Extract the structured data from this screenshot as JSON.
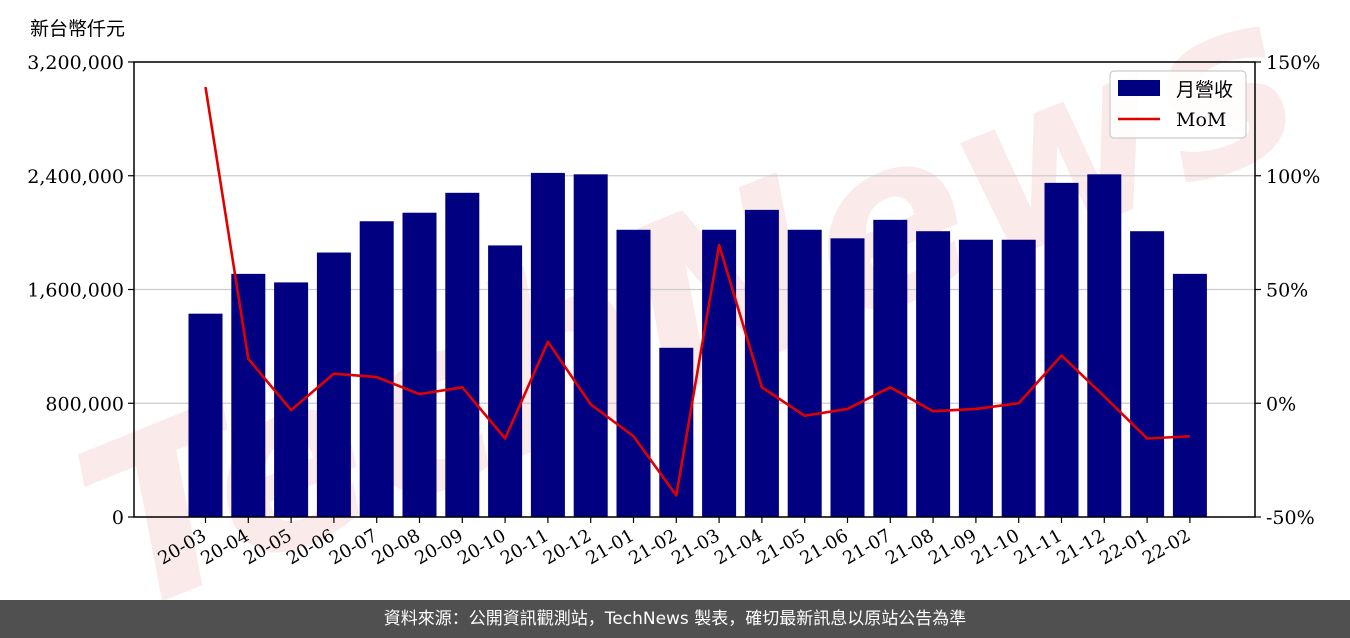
{
  "unit_label": "新台幣仟元",
  "footer_text": "資料來源：公開資訊觀測站，TechNews 製表，確切最新訊息以原站公告為準",
  "watermark": "TechNews",
  "colors": {
    "bar": "#000080",
    "line": "#e00000",
    "grid": "#cccccc",
    "footer_bg": "#505050"
  },
  "chart_data": {
    "type": "bar+line",
    "categories": [
      "20-03",
      "20-04",
      "20-05",
      "20-06",
      "20-07",
      "20-08",
      "20-09",
      "20-10",
      "20-11",
      "20-12",
      "21-01",
      "21-02",
      "21-03",
      "21-04",
      "21-05",
      "21-06",
      "21-07",
      "21-08",
      "21-09",
      "21-10",
      "21-11",
      "21-12",
      "22-01",
      "22-02"
    ],
    "series": [
      {
        "name": "月營收",
        "type": "bar",
        "axis": "left",
        "values": [
          1430000,
          1710000,
          1650000,
          1860000,
          2080000,
          2140000,
          2280000,
          1910000,
          2420000,
          2410000,
          2020000,
          1190000,
          2020000,
          2160000,
          2020000,
          1960000,
          2090000,
          2010000,
          1950000,
          1950000,
          2350000,
          2410000,
          2010000,
          1710000
        ]
      },
      {
        "name": "MoM",
        "type": "line",
        "axis": "right",
        "values": [
          139,
          19.5,
          -3,
          13,
          11.5,
          4,
          7,
          -15.5,
          27,
          -0.5,
          -14.5,
          -40.5,
          69.5,
          7,
          -5.5,
          -2.5,
          7,
          -3.5,
          -2.5,
          0,
          21,
          3,
          -15.5,
          -14.5
        ]
      }
    ],
    "y_left": {
      "min": 0,
      "max": 3200000,
      "ticks": [
        0,
        800000,
        1600000,
        2400000,
        3200000
      ],
      "tick_labels": [
        "0",
        "800,000",
        "1,600,000",
        "2,400,000",
        "3,200,000"
      ]
    },
    "y_right": {
      "min": -50,
      "max": 150,
      "ticks": [
        -50,
        0,
        50,
        100,
        150
      ],
      "tick_labels": [
        "-50%",
        "0%",
        "50%",
        "100%",
        "150%"
      ]
    },
    "grid": true,
    "legend": "top-right"
  }
}
